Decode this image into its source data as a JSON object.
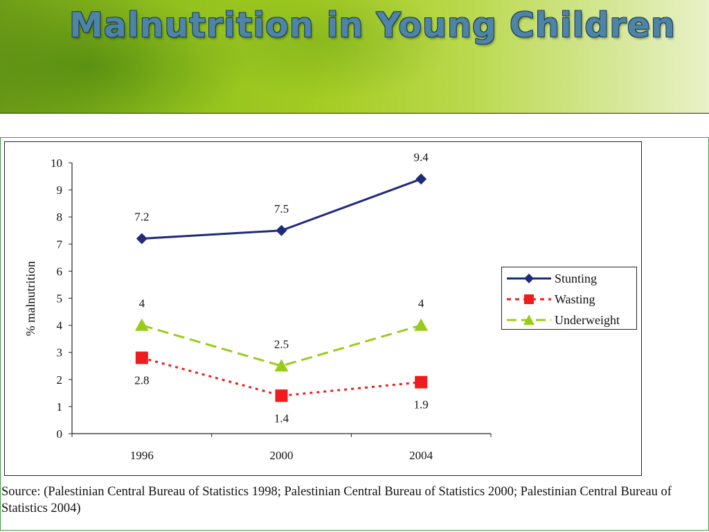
{
  "slide": {
    "title": "Malnutrition in Young Children",
    "source": "Source: (Palestinian Central Bureau of Statistics 1998; Palestinian Central Bureau of Statistics 2000; Palestinian Central Bureau of Statistics 2004)"
  },
  "chart_data": {
    "type": "line",
    "categories": [
      "1996",
      "2000",
      "2004"
    ],
    "ylabel": "% malnutrition",
    "xlabel": "",
    "ylim": [
      0,
      10
    ],
    "yticks": [
      "0",
      "1",
      "2",
      "3",
      "4",
      "5",
      "6",
      "7",
      "8",
      "9",
      "10"
    ],
    "grid": false,
    "legend_position": "right",
    "series": [
      {
        "name": "Stunting",
        "values": [
          7.2,
          7.5,
          9.4
        ],
        "labels": [
          "7.2",
          "7.5",
          "9.4"
        ],
        "color": "#1f2a7a",
        "marker": "diamond",
        "dash": "solid"
      },
      {
        "name": "Wasting",
        "values": [
          2.8,
          1.4,
          1.9
        ],
        "labels": [
          "2.8",
          "1.4",
          "1.9"
        ],
        "color": "#ee1c1c",
        "marker": "square",
        "dash": "dotted"
      },
      {
        "name": "Underweight",
        "values": [
          4,
          2.5,
          4
        ],
        "labels": [
          "4",
          "2.5",
          "4"
        ],
        "color": "#99cc1a",
        "marker": "triangle",
        "dash": "dashed"
      }
    ]
  }
}
